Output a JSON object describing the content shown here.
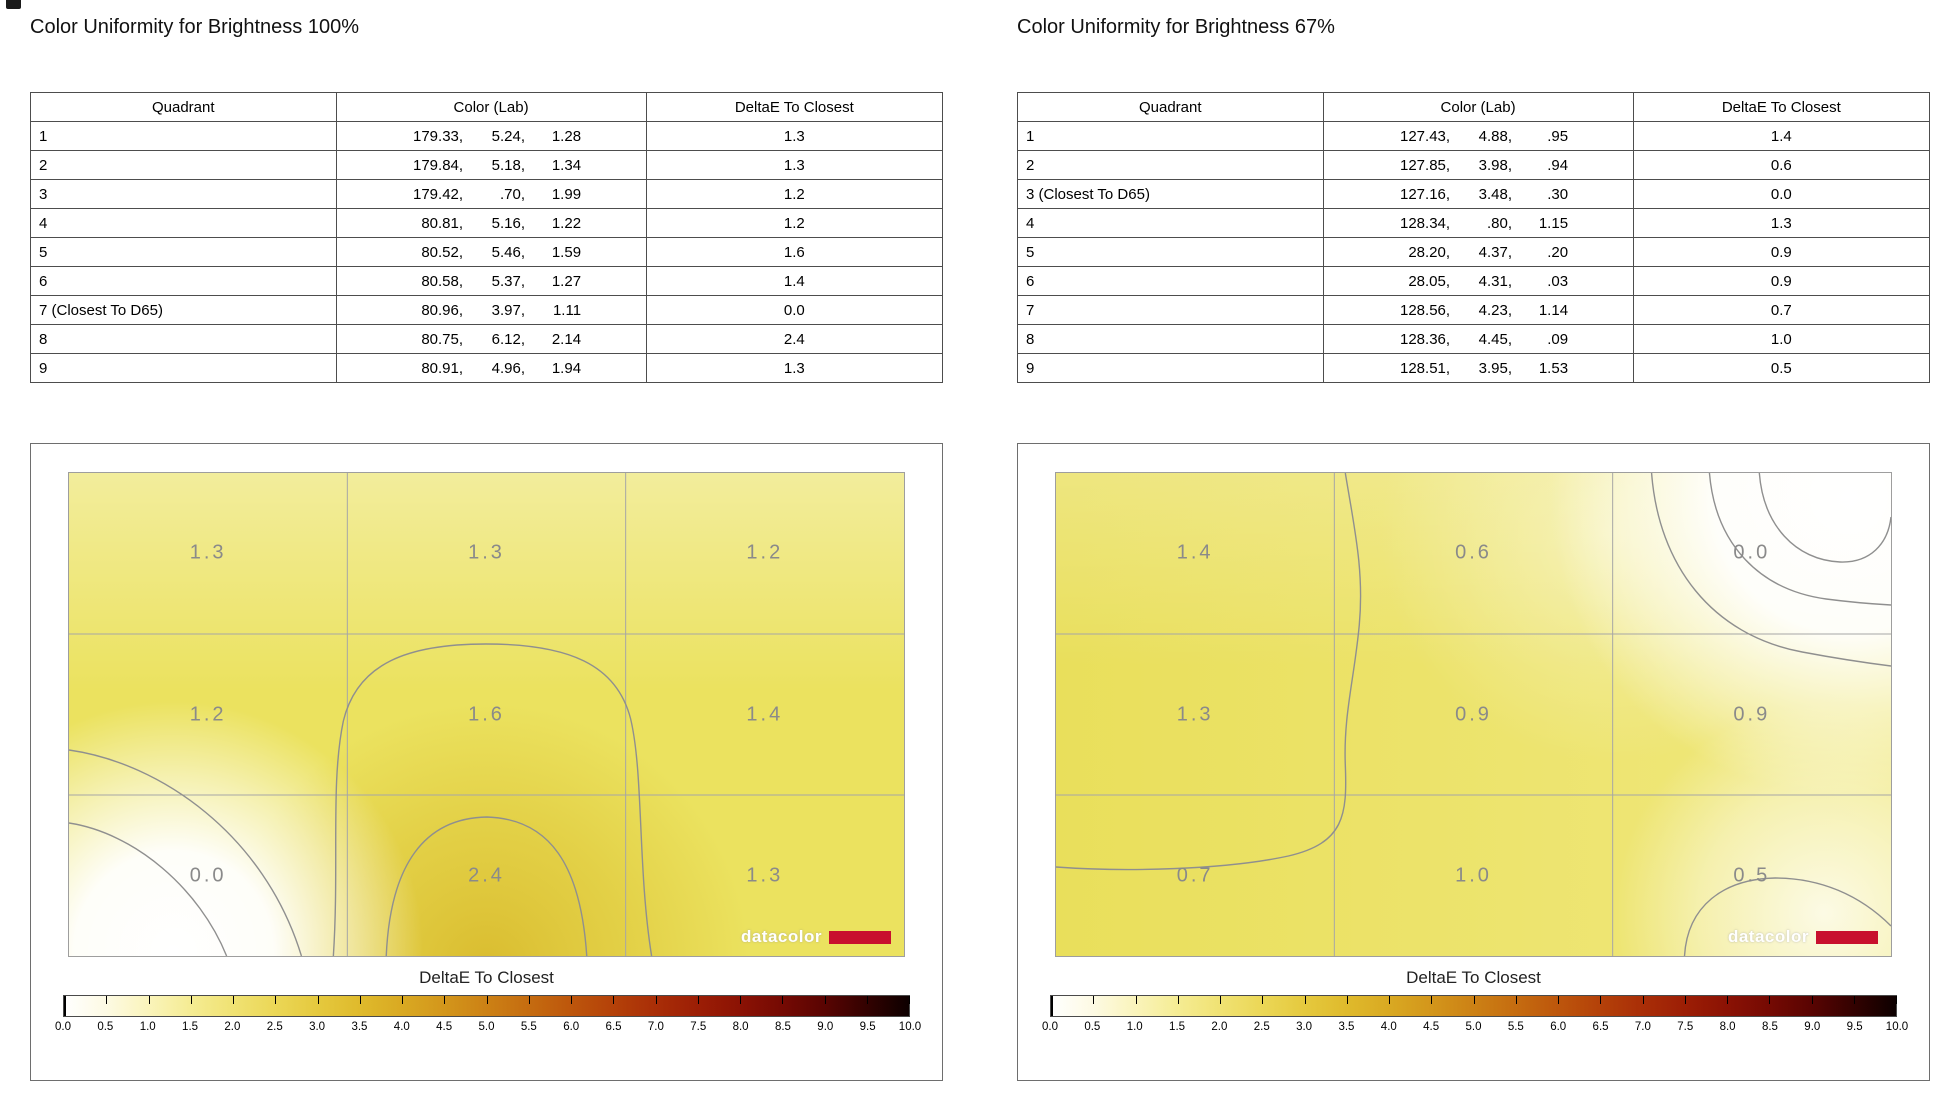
{
  "branding": {
    "logo_text": "datacolor",
    "logo_red": "#c8102e"
  },
  "panels": [
    {
      "title": "Color Uniformity for Brightness 100%",
      "table": {
        "headers": [
          "Quadrant",
          "Color (Lab)",
          "DeltaE To Closest"
        ],
        "rows": [
          {
            "quadrant": "1",
            "lab": [
              "179.33",
              "5.24",
              "1.28"
            ],
            "deltaE": "1.3"
          },
          {
            "quadrant": "2",
            "lab": [
              "179.84",
              "5.18",
              "1.34"
            ],
            "deltaE": "1.3"
          },
          {
            "quadrant": "3",
            "lab": [
              "179.42",
              ".70",
              "1.99"
            ],
            "deltaE": "1.2"
          },
          {
            "quadrant": "4",
            "lab": [
              "80.81",
              "5.16",
              "1.22"
            ],
            "deltaE": "1.2"
          },
          {
            "quadrant": "5",
            "lab": [
              "80.52",
              "5.46",
              "1.59"
            ],
            "deltaE": "1.6"
          },
          {
            "quadrant": "6",
            "lab": [
              "80.58",
              "5.37",
              "1.27"
            ],
            "deltaE": "1.4"
          },
          {
            "quadrant": "7 (Closest To D65)",
            "lab": [
              "80.96",
              "3.97",
              "1.11"
            ],
            "deltaE": "0.0"
          },
          {
            "quadrant": "8",
            "lab": [
              "80.75",
              "6.12",
              "2.14"
            ],
            "deltaE": "2.4"
          },
          {
            "quadrant": "9",
            "lab": [
              "80.91",
              "4.96",
              "1.94"
            ],
            "deltaE": "1.3"
          }
        ]
      },
      "map": {
        "values": [
          [
            "1.3",
            "1.3",
            "1.2"
          ],
          [
            "1.2",
            "1.6",
            "1.4"
          ],
          [
            "0.0",
            "2.4",
            "1.3"
          ]
        ]
      },
      "colorbar": {
        "label": "DeltaE To Closest",
        "ticks": [
          "0.0",
          "0.5",
          "1.0",
          "1.5",
          "2.0",
          "2.5",
          "3.0",
          "3.5",
          "4.0",
          "4.5",
          "5.0",
          "5.5",
          "6.0",
          "6.5",
          "7.0",
          "7.5",
          "8.0",
          "8.5",
          "9.0",
          "9.5",
          "10.0"
        ]
      }
    },
    {
      "title": "Color Uniformity for Brightness 67%",
      "table": {
        "headers": [
          "Quadrant",
          "Color (Lab)",
          "DeltaE To Closest"
        ],
        "rows": [
          {
            "quadrant": "1",
            "lab": [
              "127.43",
              "4.88",
              ".95"
            ],
            "deltaE": "1.4"
          },
          {
            "quadrant": "2",
            "lab": [
              "127.85",
              "3.98",
              ".94"
            ],
            "deltaE": "0.6"
          },
          {
            "quadrant": "3 (Closest To D65)",
            "lab": [
              "127.16",
              "3.48",
              ".30"
            ],
            "deltaE": "0.0"
          },
          {
            "quadrant": "4",
            "lab": [
              "128.34",
              ".80",
              "1.15"
            ],
            "deltaE": "1.3"
          },
          {
            "quadrant": "5",
            "lab": [
              "28.20",
              "4.37",
              ".20"
            ],
            "deltaE": "0.9"
          },
          {
            "quadrant": "6",
            "lab": [
              "28.05",
              "4.31",
              ".03"
            ],
            "deltaE": "0.9"
          },
          {
            "quadrant": "7",
            "lab": [
              "128.56",
              "4.23",
              "1.14"
            ],
            "deltaE": "0.7"
          },
          {
            "quadrant": "8",
            "lab": [
              "128.36",
              "4.45",
              ".09"
            ],
            "deltaE": "1.0"
          },
          {
            "quadrant": "9",
            "lab": [
              "128.51",
              "3.95",
              "1.53"
            ],
            "deltaE": "0.5"
          }
        ]
      },
      "map": {
        "values": [
          [
            "1.4",
            "0.6",
            "0.0"
          ],
          [
            "1.3",
            "0.9",
            "0.9"
          ],
          [
            "0.7",
            "1.0",
            "0.5"
          ]
        ]
      },
      "colorbar": {
        "label": "DeltaE To Closest",
        "ticks": [
          "0.0",
          "0.5",
          "1.0",
          "1.5",
          "2.0",
          "2.5",
          "3.0",
          "3.5",
          "4.0",
          "4.5",
          "5.0",
          "5.5",
          "6.0",
          "6.5",
          "7.0",
          "7.5",
          "8.0",
          "8.5",
          "9.0",
          "9.5",
          "10.0"
        ]
      }
    }
  ],
  "chart_data": [
    {
      "type": "table",
      "title": "Color Uniformity for Brightness 100%",
      "columns": [
        "Quadrant",
        "Color (Lab)",
        "DeltaE To Closest"
      ],
      "rows": [
        [
          "1",
          "179.33, 5.24, 1.28",
          1.3
        ],
        [
          "2",
          "179.84, 5.18, 1.34",
          1.3
        ],
        [
          "3",
          "179.42, .70, 1.99",
          1.2
        ],
        [
          "4",
          "80.81, 5.16, 1.22",
          1.2
        ],
        [
          "5",
          "80.52, 5.46, 1.59",
          1.6
        ],
        [
          "6",
          "80.58, 5.37, 1.27",
          1.4
        ],
        [
          "7 (Closest To D65)",
          "80.96, 3.97, 1.11",
          0.0
        ],
        [
          "8",
          "80.75, 6.12, 2.14",
          2.4
        ],
        [
          "9",
          "80.91, 4.96, 1.94",
          1.3
        ]
      ]
    },
    {
      "type": "heatmap",
      "title": "DeltaE To Closest (Brightness 100%)",
      "grid": [
        [
          1.3,
          1.3,
          1.2
        ],
        [
          1.2,
          1.6,
          1.4
        ],
        [
          0.0,
          2.4,
          1.3
        ]
      ],
      "colorbar": {
        "label": "DeltaE To Closest",
        "min": 0.0,
        "max": 10.0,
        "step": 0.5
      }
    },
    {
      "type": "table",
      "title": "Color Uniformity for Brightness 67%",
      "columns": [
        "Quadrant",
        "Color (Lab)",
        "DeltaE To Closest"
      ],
      "rows": [
        [
          "1",
          "127.43, 4.88, .95",
          1.4
        ],
        [
          "2",
          "127.85, 3.98, .94",
          0.6
        ],
        [
          "3 (Closest To D65)",
          "127.16, 3.48, .30",
          0.0
        ],
        [
          "4",
          "128.34, .80, 1.15",
          1.3
        ],
        [
          "5",
          "28.20, 4.37, .20",
          0.9
        ],
        [
          "6",
          "28.05, 4.31, .03",
          0.9
        ],
        [
          "7",
          "128.56, 4.23, 1.14",
          0.7
        ],
        [
          "8",
          "128.36, 4.45, .09",
          1.0
        ],
        [
          "9",
          "128.51, 3.95, 1.53",
          0.5
        ]
      ]
    },
    {
      "type": "heatmap",
      "title": "DeltaE To Closest (Brightness 67%)",
      "grid": [
        [
          1.4,
          0.6,
          0.0
        ],
        [
          1.3,
          0.9,
          0.9
        ],
        [
          0.7,
          1.0,
          0.5
        ]
      ],
      "colorbar": {
        "label": "DeltaE To Closest",
        "min": 0.0,
        "max": 10.0,
        "step": 0.5
      }
    }
  ]
}
